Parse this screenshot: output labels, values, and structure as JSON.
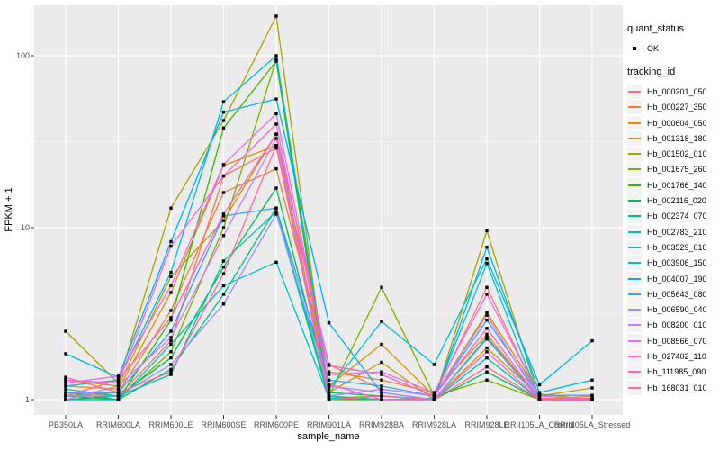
{
  "colors": {
    "background": "#FFFFFF",
    "panel_bg": "#EBEBEB",
    "grid_major": "#FFFFFF",
    "grid_minor": "#FFFFFF",
    "legend_key_bg": "#F2F2F2",
    "axis_text": "#4D4D4D",
    "tick_mark": "#333333",
    "point": "#000000"
  },
  "chart_data": {
    "type": "line",
    "title": "",
    "xlabel": "sample_name",
    "ylabel": "FPKM + 1",
    "yscale": "log10",
    "ylim": [
      0.82,
      195
    ],
    "yticks": [
      1,
      10,
      100
    ],
    "ytick_labels": [
      "1",
      "10",
      "100"
    ],
    "minor_yticks": [
      3.162,
      31.62
    ],
    "grid": "white major+minor gridlines on grey panel",
    "legend_position": "right",
    "point_marker": "small black square at every data point",
    "categories": [
      "PB350LA",
      "RRIM600LA",
      "RRIM600LE",
      "RRIM600SE",
      "RRIM600PE",
      "RRIM901LA",
      "RRIM928BA",
      "RRIM928LA",
      "RRIM928LE",
      "RRII105LA_Control",
      "RRII105LA_Stressed"
    ],
    "quant_status": {
      "title": "quant_status",
      "items": [
        {
          "label": "OK",
          "marker": "black-point"
        }
      ]
    },
    "tracking": {
      "title": "tracking_id"
    },
    "series": [
      {
        "name": "Hb_000201_050",
        "color": "#F8766D",
        "values": [
          1.1,
          1.05,
          2.2,
          20.0,
          29.0,
          1.6,
          1.15,
          1.05,
          4.5,
          1.02,
          1.0
        ]
      },
      {
        "name": "Hb_000227_350",
        "color": "#EA8331",
        "values": [
          1.05,
          1.1,
          3.3,
          16.0,
          22.0,
          1.45,
          1.3,
          1.1,
          2.4,
          1.0,
          1.05
        ]
      },
      {
        "name": "Hb_000604_050",
        "color": "#D89000",
        "values": [
          1.2,
          1.15,
          4.2,
          23.0,
          30.0,
          1.2,
          2.1,
          1.05,
          3.2,
          1.08,
          1.0
        ]
      },
      {
        "name": "Hb_001318_180",
        "color": "#C09B00",
        "values": [
          1.3,
          1.2,
          5.2,
          11.0,
          35.0,
          1.1,
          1.65,
          1.0,
          2.0,
          1.05,
          1.17
        ]
      },
      {
        "name": "Hb_001502_010",
        "color": "#A3A500",
        "values": [
          2.5,
          1.25,
          13.0,
          42.0,
          170.0,
          1.02,
          1.05,
          1.0,
          9.6,
          1.0,
          1.0
        ]
      },
      {
        "name": "Hb_001675_260",
        "color": "#7CAE00",
        "values": [
          1.0,
          1.0,
          1.9,
          10.0,
          95.0,
          1.05,
          4.5,
          1.05,
          1.3,
          1.0,
          1.0
        ]
      },
      {
        "name": "Hb_001766_140",
        "color": "#39B600",
        "values": [
          1.05,
          1.0,
          2.9,
          38.0,
          93.0,
          1.0,
          1.0,
          1.0,
          2.3,
          1.0,
          1.0
        ]
      },
      {
        "name": "Hb_002116_020",
        "color": "#00BB4E",
        "values": [
          1.0,
          1.05,
          1.75,
          5.9,
          17.0,
          1.1,
          1.05,
          1.0,
          1.45,
          1.0,
          1.0
        ]
      },
      {
        "name": "Hb_002374_070",
        "color": "#00BF7D",
        "values": [
          1.1,
          1.0,
          1.5,
          4.1,
          13.0,
          1.05,
          1.0,
          1.0,
          2.3,
          1.0,
          1.0
        ]
      },
      {
        "name": "Hb_002783_210",
        "color": "#00C1A3",
        "values": [
          1.15,
          1.05,
          1.4,
          6.4,
          12.4,
          1.0,
          1.05,
          1.0,
          1.75,
          1.0,
          1.0
        ]
      },
      {
        "name": "Hb_003529_010",
        "color": "#00BFC4",
        "values": [
          1.0,
          1.0,
          2.1,
          4.6,
          6.3,
          1.02,
          1.0,
          1.02,
          6.2,
          1.0,
          1.0
        ]
      },
      {
        "name": "Hb_003906_150",
        "color": "#00BAE0",
        "values": [
          1.2,
          1.3,
          5.5,
          54.0,
          100.0,
          1.15,
          2.85,
          1.6,
          6.6,
          1.22,
          2.2
        ]
      },
      {
        "name": "Hb_004007_190",
        "color": "#00B0F6",
        "values": [
          1.85,
          1.35,
          8.3,
          47.0,
          56.0,
          2.8,
          1.1,
          1.0,
          7.7,
          1.1,
          1.3
        ]
      },
      {
        "name": "Hb_005643_080",
        "color": "#35A2FF",
        "values": [
          1.1,
          1.1,
          2.5,
          11.7,
          13.0,
          1.3,
          1.2,
          1.05,
          2.9,
          1.06,
          1.06
        ]
      },
      {
        "name": "Hb_006590_040",
        "color": "#9590FF",
        "values": [
          1.05,
          1.05,
          1.6,
          3.6,
          12.0,
          1.2,
          1.1,
          1.0,
          2.25,
          1.0,
          1.0
        ]
      },
      {
        "name": "Hb_008200_010",
        "color": "#C77CFF",
        "values": [
          1.0,
          1.2,
          2.3,
          9.0,
          33.0,
          1.05,
          1.15,
          1.05,
          3.1,
          1.0,
          1.0
        ]
      },
      {
        "name": "Hb_008566_070",
        "color": "#E76BF3",
        "values": [
          1.25,
          1.37,
          4.6,
          23.3,
          46.0,
          1.4,
          1.45,
          1.1,
          4.1,
          1.05,
          1.0
        ]
      },
      {
        "name": "Hb_027402_110",
        "color": "#FA62DB",
        "values": [
          1.3,
          1.25,
          7.8,
          20.0,
          40.0,
          1.23,
          1.0,
          1.0,
          1.9,
          1.0,
          1.0
        ]
      },
      {
        "name": "Hb_111985_090",
        "color": "#FF62BC",
        "values": [
          1.05,
          1.3,
          3.0,
          12.0,
          35.0,
          1.58,
          1.4,
          1.05,
          2.6,
          1.0,
          1.02
        ]
      },
      {
        "name": "Hb_168031_010",
        "color": "#FF6A98",
        "values": [
          1.35,
          1.1,
          1.45,
          5.4,
          30.0,
          1.0,
          1.05,
          1.0,
          1.55,
          1.0,
          1.0
        ]
      }
    ]
  }
}
